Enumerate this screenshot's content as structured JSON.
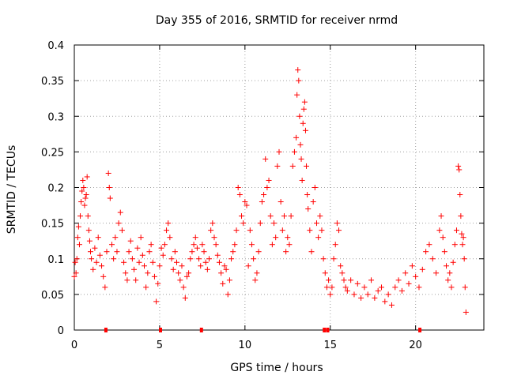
{
  "chart_data": {
    "type": "scatter",
    "title": "Day 355 of 2016, SRMTID for receiver nrmd",
    "xlabel": "GPS time / hours",
    "ylabel": "SRMTID / TECUs",
    "xlim": [
      0,
      24
    ],
    "ylim": [
      0,
      0.4
    ],
    "grid": true,
    "marker": "+",
    "marker_color": "#ff0000",
    "x_ticks": [
      0,
      5,
      10,
      15,
      20
    ],
    "x_tick_labels": [
      "0",
      "5",
      "10",
      "15",
      "20"
    ],
    "y_ticks": [
      0,
      0.05,
      0.1,
      0.15,
      0.2,
      0.25,
      0.3,
      0.35,
      0.4
    ],
    "y_tick_labels": [
      "0",
      "0.05",
      "0.1",
      "0.15",
      "0.2",
      "0.25",
      "0.3",
      "0.35",
      "0.4"
    ],
    "series": [
      {
        "name": "SRMTID",
        "points": [
          [
            0.0,
            0.075
          ],
          [
            0.05,
            0.095
          ],
          [
            0.1,
            0.08
          ],
          [
            0.15,
            0.1
          ],
          [
            0.2,
            0.13
          ],
          [
            0.25,
            0.145
          ],
          [
            0.3,
            0.12
          ],
          [
            0.35,
            0.16
          ],
          [
            0.4,
            0.18
          ],
          [
            0.45,
            0.195
          ],
          [
            0.5,
            0.21
          ],
          [
            0.55,
            0.2
          ],
          [
            0.6,
            0.175
          ],
          [
            0.65,
            0.185
          ],
          [
            0.7,
            0.19
          ],
          [
            0.75,
            0.215
          ],
          [
            0.8,
            0.16
          ],
          [
            0.85,
            0.14
          ],
          [
            0.9,
            0.125
          ],
          [
            0.95,
            0.11
          ],
          [
            1.0,
            0.1
          ],
          [
            1.1,
            0.085
          ],
          [
            1.2,
            0.115
          ],
          [
            1.3,
            0.095
          ],
          [
            1.4,
            0.13
          ],
          [
            1.5,
            0.105
          ],
          [
            1.6,
            0.09
          ],
          [
            1.7,
            0.075
          ],
          [
            1.8,
            0.06
          ],
          [
            1.9,
            0.11
          ],
          [
            2.0,
            0.22
          ],
          [
            2.05,
            0.2
          ],
          [
            2.1,
            0.185
          ],
          [
            2.2,
            0.12
          ],
          [
            2.3,
            0.1
          ],
          [
            2.4,
            0.13
          ],
          [
            2.5,
            0.11
          ],
          [
            2.6,
            0.15
          ],
          [
            2.7,
            0.165
          ],
          [
            2.8,
            0.14
          ],
          [
            2.9,
            0.095
          ],
          [
            3.0,
            0.08
          ],
          [
            3.1,
            0.07
          ],
          [
            3.2,
            0.11
          ],
          [
            3.3,
            0.125
          ],
          [
            3.4,
            0.1
          ],
          [
            3.5,
            0.085
          ],
          [
            3.6,
            0.07
          ],
          [
            3.7,
            0.115
          ],
          [
            3.8,
            0.095
          ],
          [
            3.9,
            0.13
          ],
          [
            4.0,
            0.105
          ],
          [
            4.1,
            0.09
          ],
          [
            4.2,
            0.06
          ],
          [
            4.3,
            0.08
          ],
          [
            4.4,
            0.11
          ],
          [
            4.5,
            0.12
          ],
          [
            4.6,
            0.095
          ],
          [
            4.7,
            0.075
          ],
          [
            4.8,
            0.04
          ],
          [
            4.9,
            0.065
          ],
          [
            5.0,
            0.09
          ],
          [
            5.1,
            0.115
          ],
          [
            5.2,
            0.105
          ],
          [
            5.3,
            0.12
          ],
          [
            5.4,
            0.14
          ],
          [
            5.5,
            0.15
          ],
          [
            5.6,
            0.13
          ],
          [
            5.7,
            0.1
          ],
          [
            5.8,
            0.085
          ],
          [
            5.9,
            0.11
          ],
          [
            6.0,
            0.095
          ],
          [
            6.1,
            0.08
          ],
          [
            6.2,
            0.07
          ],
          [
            6.3,
            0.09
          ],
          [
            6.4,
            0.06
          ],
          [
            6.5,
            0.045
          ],
          [
            6.6,
            0.075
          ],
          [
            6.7,
            0.08
          ],
          [
            6.8,
            0.1
          ],
          [
            6.9,
            0.11
          ],
          [
            7.0,
            0.12
          ],
          [
            7.1,
            0.13
          ],
          [
            7.2,
            0.115
          ],
          [
            7.3,
            0.1
          ],
          [
            7.4,
            0.09
          ],
          [
            7.5,
            0.12
          ],
          [
            7.6,
            0.11
          ],
          [
            7.7,
            0.095
          ],
          [
            7.8,
            0.085
          ],
          [
            7.9,
            0.1
          ],
          [
            8.0,
            0.14
          ],
          [
            8.1,
            0.15
          ],
          [
            8.2,
            0.13
          ],
          [
            8.3,
            0.12
          ],
          [
            8.4,
            0.105
          ],
          [
            8.5,
            0.095
          ],
          [
            8.6,
            0.08
          ],
          [
            8.7,
            0.065
          ],
          [
            8.8,
            0.09
          ],
          [
            8.9,
            0.085
          ],
          [
            9.0,
            0.05
          ],
          [
            9.1,
            0.07
          ],
          [
            9.2,
            0.1
          ],
          [
            9.3,
            0.11
          ],
          [
            9.4,
            0.12
          ],
          [
            9.5,
            0.14
          ],
          [
            9.6,
            0.2
          ],
          [
            9.7,
            0.19
          ],
          [
            9.8,
            0.16
          ],
          [
            9.9,
            0.15
          ],
          [
            10.0,
            0.18
          ],
          [
            10.1,
            0.175
          ],
          [
            10.2,
            0.09
          ],
          [
            10.3,
            0.14
          ],
          [
            10.4,
            0.12
          ],
          [
            10.5,
            0.1
          ],
          [
            10.6,
            0.07
          ],
          [
            10.7,
            0.08
          ],
          [
            10.8,
            0.11
          ],
          [
            10.9,
            0.15
          ],
          [
            11.0,
            0.18
          ],
          [
            11.1,
            0.19
          ],
          [
            11.2,
            0.24
          ],
          [
            11.3,
            0.2
          ],
          [
            11.4,
            0.21
          ],
          [
            11.5,
            0.16
          ],
          [
            11.6,
            0.12
          ],
          [
            11.7,
            0.15
          ],
          [
            11.8,
            0.13
          ],
          [
            11.9,
            0.23
          ],
          [
            12.0,
            0.25
          ],
          [
            12.1,
            0.18
          ],
          [
            12.2,
            0.14
          ],
          [
            12.3,
            0.16
          ],
          [
            12.4,
            0.11
          ],
          [
            12.5,
            0.13
          ],
          [
            12.6,
            0.12
          ],
          [
            12.7,
            0.16
          ],
          [
            12.8,
            0.23
          ],
          [
            12.9,
            0.25
          ],
          [
            13.0,
            0.27
          ],
          [
            13.05,
            0.33
          ],
          [
            13.1,
            0.365
          ],
          [
            13.15,
            0.35
          ],
          [
            13.2,
            0.3
          ],
          [
            13.25,
            0.26
          ],
          [
            13.3,
            0.24
          ],
          [
            13.35,
            0.21
          ],
          [
            13.4,
            0.29
          ],
          [
            13.45,
            0.31
          ],
          [
            13.5,
            0.32
          ],
          [
            13.55,
            0.28
          ],
          [
            13.6,
            0.23
          ],
          [
            13.65,
            0.19
          ],
          [
            13.7,
            0.17
          ],
          [
            13.8,
            0.14
          ],
          [
            13.9,
            0.11
          ],
          [
            14.0,
            0.18
          ],
          [
            14.1,
            0.2
          ],
          [
            14.2,
            0.15
          ],
          [
            14.3,
            0.13
          ],
          [
            14.4,
            0.16
          ],
          [
            14.5,
            0.14
          ],
          [
            14.6,
            0.1
          ],
          [
            14.7,
            0.08
          ],
          [
            14.8,
            0.06
          ],
          [
            14.9,
            0.07
          ],
          [
            15.0,
            0.05
          ],
          [
            15.1,
            0.06
          ],
          [
            15.2,
            0.1
          ],
          [
            15.3,
            0.12
          ],
          [
            15.4,
            0.15
          ],
          [
            15.5,
            0.14
          ],
          [
            15.6,
            0.09
          ],
          [
            15.7,
            0.08
          ],
          [
            15.8,
            0.07
          ],
          [
            15.9,
            0.06
          ],
          [
            16.0,
            0.055
          ],
          [
            16.2,
            0.07
          ],
          [
            16.4,
            0.05
          ],
          [
            16.6,
            0.065
          ],
          [
            16.8,
            0.045
          ],
          [
            17.0,
            0.06
          ],
          [
            17.2,
            0.05
          ],
          [
            17.4,
            0.07
          ],
          [
            17.6,
            0.045
          ],
          [
            17.8,
            0.055
          ],
          [
            18.0,
            0.06
          ],
          [
            18.2,
            0.04
          ],
          [
            18.4,
            0.05
          ],
          [
            18.6,
            0.035
          ],
          [
            18.8,
            0.06
          ],
          [
            19.0,
            0.07
          ],
          [
            19.2,
            0.055
          ],
          [
            19.4,
            0.08
          ],
          [
            19.6,
            0.065
          ],
          [
            19.8,
            0.09
          ],
          [
            20.0,
            0.075
          ],
          [
            20.2,
            0.06
          ],
          [
            20.4,
            0.085
          ],
          [
            20.6,
            0.11
          ],
          [
            20.8,
            0.12
          ],
          [
            21.0,
            0.1
          ],
          [
            21.2,
            0.08
          ],
          [
            21.4,
            0.14
          ],
          [
            21.5,
            0.16
          ],
          [
            21.6,
            0.13
          ],
          [
            21.7,
            0.11
          ],
          [
            21.8,
            0.09
          ],
          [
            21.9,
            0.07
          ],
          [
            22.0,
            0.08
          ],
          [
            22.1,
            0.06
          ],
          [
            22.2,
            0.095
          ],
          [
            22.3,
            0.12
          ],
          [
            22.4,
            0.14
          ],
          [
            22.5,
            0.23
          ],
          [
            22.55,
            0.225
          ],
          [
            22.6,
            0.19
          ],
          [
            22.65,
            0.16
          ],
          [
            22.7,
            0.135
          ],
          [
            22.75,
            0.12
          ],
          [
            22.8,
            0.13
          ],
          [
            22.85,
            0.1
          ],
          [
            22.9,
            0.06
          ],
          [
            22.95,
            0.025
          ]
        ]
      }
    ],
    "zero_markers": [
      1.85,
      5.05,
      7.45,
      14.65,
      14.85,
      20.25
    ]
  }
}
